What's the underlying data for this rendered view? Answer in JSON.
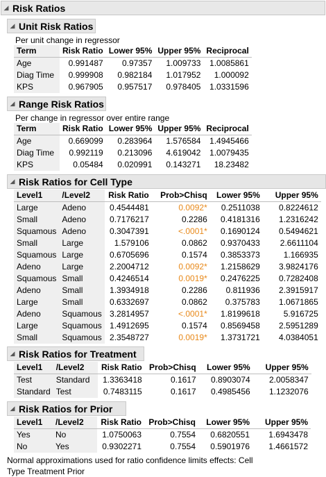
{
  "main_title": "Risk Ratios",
  "unit": {
    "title": "Unit Risk Ratios",
    "note": "Per unit change in regressor",
    "headers": [
      "Term",
      "Risk Ratio",
      "Lower 95%",
      "Upper 95%",
      "Reciprocal"
    ],
    "rows": [
      [
        "Age",
        "0.991487",
        "0.97357",
        "1.009733",
        "1.0085861"
      ],
      [
        "Diag Time",
        "0.999908",
        "0.982184",
        "1.017952",
        "1.000092"
      ],
      [
        "KPS",
        "0.967905",
        "0.957517",
        "0.978405",
        "1.0331596"
      ]
    ]
  },
  "range": {
    "title": "Range Risk Ratios",
    "note": "Per change in regressor over entire range",
    "headers": [
      "Term",
      "Risk Ratio",
      "Lower 95%",
      "Upper 95%",
      "Reciprocal"
    ],
    "rows": [
      [
        "Age",
        "0.669099",
        "0.283964",
        "1.576584",
        "1.4945466"
      ],
      [
        "Diag Time",
        "0.992119",
        "0.213096",
        "4.619042",
        "1.0079435"
      ],
      [
        "KPS",
        "0.05484",
        "0.020991",
        "0.143271",
        "18.23482"
      ]
    ]
  },
  "cell": {
    "title": "Risk Ratios for Cell Type",
    "headers": [
      "Level1",
      "/Level2",
      "Risk Ratio",
      "Prob>Chisq",
      "Lower 95%",
      "Upper 95%"
    ],
    "rows": [
      [
        "Large",
        "Adeno",
        "0.4544481",
        "0.0092*",
        "0.2511038",
        "0.8224612"
      ],
      [
        "Small",
        "Adeno",
        "0.7176217",
        "0.2286",
        "0.4181316",
        "1.2316242"
      ],
      [
        "Squamous",
        "Adeno",
        "0.3047391",
        "<.0001*",
        "0.1690124",
        "0.5494621"
      ],
      [
        "Small",
        "Large",
        "1.579106",
        "0.0862",
        "0.9370433",
        "2.6611104"
      ],
      [
        "Squamous",
        "Large",
        "0.6705696",
        "0.1574",
        "0.3853373",
        "1.166935"
      ],
      [
        "Adeno",
        "Large",
        "2.2004712",
        "0.0092*",
        "1.2158629",
        "3.9824176"
      ],
      [
        "Squamous",
        "Small",
        "0.4246514",
        "0.0019*",
        "0.2476225",
        "0.7282408"
      ],
      [
        "Adeno",
        "Small",
        "1.3934918",
        "0.2286",
        "0.811936",
        "2.3915917"
      ],
      [
        "Large",
        "Small",
        "0.6332697",
        "0.0862",
        "0.375783",
        "1.0671865"
      ],
      [
        "Adeno",
        "Squamous",
        "3.2814957",
        "<.0001*",
        "1.8199618",
        "5.916725"
      ],
      [
        "Large",
        "Squamous",
        "1.4912695",
        "0.1574",
        "0.8569458",
        "2.5951289"
      ],
      [
        "Small",
        "Squamous",
        "2.3548727",
        "0.0019*",
        "1.3731721",
        "4.0384051"
      ]
    ]
  },
  "treatment": {
    "title": "Risk Ratios for Treatment",
    "headers": [
      "Level1",
      "/Level2",
      "Risk Ratio",
      "Prob>Chisq",
      "Lower 95%",
      "Upper 95%"
    ],
    "rows": [
      [
        "Test",
        "Standard",
        "1.3363418",
        "0.1617",
        "0.8903074",
        "2.0058347"
      ],
      [
        "Standard",
        "Test",
        "0.7483115",
        "0.1617",
        "0.4985456",
        "1.1232076"
      ]
    ]
  },
  "prior": {
    "title": "Risk Ratios for Prior",
    "headers": [
      "Level1",
      "/Level2",
      "Risk Ratio",
      "Prob>Chisq",
      "Lower 95%",
      "Upper 95%"
    ],
    "rows": [
      [
        "Yes",
        "No",
        "1.0750063",
        "0.7554",
        "0.6820551",
        "1.6943478"
      ],
      [
        "No",
        "Yes",
        "0.9302271",
        "0.7554",
        "0.5901976",
        "1.4661572"
      ]
    ]
  },
  "footnote": "Normal approximations used for ratio confidence limits effects: Cell Type Treatment Prior",
  "colors": {
    "significant": "#e8891a"
  }
}
